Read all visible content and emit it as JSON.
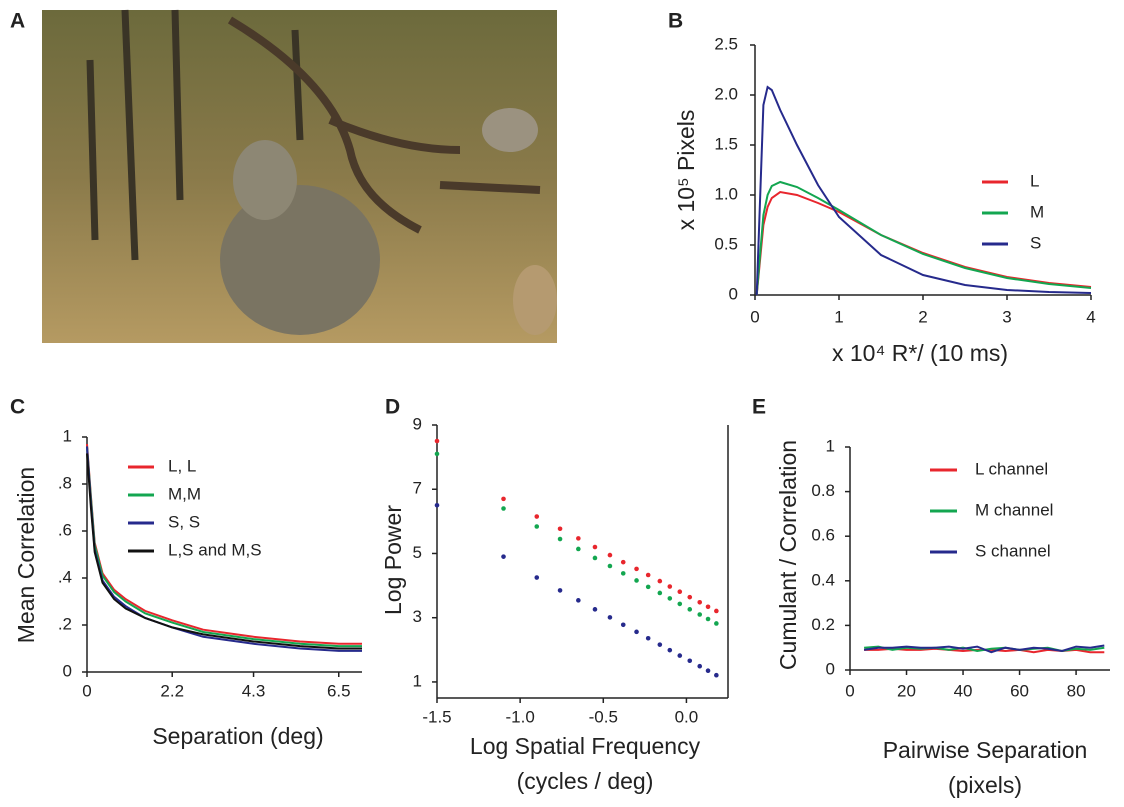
{
  "chart_data": [
    {
      "type": "image",
      "panel": "A"
    },
    {
      "type": "line",
      "panel": "B",
      "ylabel": "x 10⁵ Pixels",
      "xlabel": "x 10⁴ R*/ (10 ms)",
      "x": [
        0.02,
        0.1,
        0.15,
        0.2,
        0.3,
        0.5,
        0.75,
        1,
        1.5,
        2,
        2.5,
        3,
        3.5,
        4
      ],
      "series": [
        {
          "name": "L",
          "color": "#e8262d",
          "values": [
            0,
            0.7,
            0.88,
            0.97,
            1.03,
            1.0,
            0.92,
            0.83,
            0.6,
            0.42,
            0.28,
            0.18,
            0.12,
            0.08
          ]
        },
        {
          "name": "M",
          "color": "#13a650",
          "values": [
            0,
            0.8,
            1.0,
            1.09,
            1.13,
            1.08,
            0.97,
            0.85,
            0.6,
            0.41,
            0.27,
            0.17,
            0.11,
            0.07
          ]
        },
        {
          "name": "S",
          "color": "#262a8c",
          "values": [
            0,
            1.9,
            2.08,
            2.05,
            1.85,
            1.5,
            1.1,
            0.78,
            0.4,
            0.2,
            0.1,
            0.05,
            0.03,
            0.02
          ]
        }
      ],
      "xlim": [
        0,
        4
      ],
      "xticks": [
        0,
        1,
        2,
        3,
        4
      ],
      "ylim": [
        0,
        2.5
      ],
      "yticks": [
        0,
        0.5,
        {
          "value": 1,
          "label": "1.0"
        },
        1.5,
        {
          "value": 2,
          "label": "2.0"
        },
        2.5
      ]
    },
    {
      "type": "line",
      "panel": "C",
      "ylabel": "Mean Correlation",
      "xlabel": "Separation (deg)",
      "x": [
        0,
        0.1,
        0.2,
        0.4,
        0.7,
        1,
        1.5,
        2.2,
        3,
        4.3,
        5.5,
        6.5,
        7.1
      ],
      "series": [
        {
          "name": "L, L",
          "color": "#e8262d",
          "values": [
            0.97,
            0.75,
            0.55,
            0.42,
            0.35,
            0.31,
            0.26,
            0.22,
            0.18,
            0.15,
            0.13,
            0.12,
            0.12
          ]
        },
        {
          "name": "M,M",
          "color": "#13a650",
          "values": [
            0.96,
            0.74,
            0.54,
            0.41,
            0.34,
            0.3,
            0.25,
            0.21,
            0.17,
            0.14,
            0.12,
            0.11,
            0.11
          ]
        },
        {
          "name": "S, S",
          "color": "#262a8c",
          "values": [
            0.96,
            0.72,
            0.52,
            0.39,
            0.32,
            0.28,
            0.23,
            0.19,
            0.15,
            0.12,
            0.1,
            0.09,
            0.09
          ]
        },
        {
          "name": "L,S and M,S",
          "color": "#111111",
          "values": [
            0.93,
            0.7,
            0.51,
            0.38,
            0.31,
            0.27,
            0.23,
            0.19,
            0.16,
            0.13,
            0.11,
            0.1,
            0.1
          ]
        }
      ],
      "xlim": [
        0,
        7.1
      ],
      "xticks": [
        0,
        2.2,
        4.3,
        6.5
      ],
      "ylim": [
        0,
        1
      ],
      "yticks": [
        0,
        {
          "value": 0.2,
          "label": ".2"
        },
        {
          "value": 0.4,
          "label": ".4"
        },
        {
          "value": 0.6,
          "label": ".6"
        },
        {
          "value": 0.8,
          "label": ".8"
        },
        1
      ]
    },
    {
      "type": "scatter",
      "panel": "D",
      "ylabel": "Log Power",
      "xlabel": [
        "Log Spatial Frequency",
        "(cycles / deg)"
      ],
      "x": [
        -1.5,
        -1.1,
        -0.9,
        -0.76,
        -0.65,
        -0.55,
        -0.46,
        -0.38,
        -0.3,
        -0.23,
        -0.16,
        -0.1,
        -0.04,
        0.02,
        0.08,
        0.13,
        0.18
      ],
      "series": [
        {
          "color": "#e8262d",
          "values": [
            8.5,
            6.7,
            6.15,
            5.77,
            5.47,
            5.2,
            4.95,
            4.73,
            4.52,
            4.33,
            4.14,
            3.97,
            3.81,
            3.64,
            3.48,
            3.34,
            3.21
          ]
        },
        {
          "color": "#13a650",
          "values": [
            8.1,
            6.4,
            5.84,
            5.45,
            5.14,
            4.86,
            4.61,
            4.38,
            4.16,
            3.96,
            3.77,
            3.6,
            3.43,
            3.26,
            3.1,
            2.96,
            2.82
          ]
        },
        {
          "color": "#262a8c",
          "values": [
            6.5,
            4.9,
            4.25,
            3.85,
            3.54,
            3.26,
            3.01,
            2.78,
            2.56,
            2.36,
            2.16,
            1.99,
            1.82,
            1.66,
            1.49,
            1.35,
            1.21
          ]
        }
      ],
      "xlim": [
        -1.5,
        0.25
      ],
      "xticks": [
        -1.5,
        {
          "value": -1,
          "label": "-1.0"
        },
        -0.5,
        {
          "value": 0,
          "label": "0.0"
        }
      ],
      "ylim": [
        0.5,
        9
      ],
      "yticks": [
        1,
        3,
        5,
        7,
        9
      ]
    },
    {
      "type": "line",
      "panel": "E",
      "ylabel": "Cumulant / Correlation",
      "xlabel": [
        "Pairwise Separation",
        "(pixels)"
      ],
      "x": [
        5,
        10,
        15,
        20,
        25,
        30,
        35,
        40,
        45,
        50,
        55,
        60,
        65,
        70,
        75,
        80,
        85,
        90
      ],
      "series": [
        {
          "name": "L channel",
          "color": "#e8262d",
          "values": [
            0.09,
            0.09,
            0.095,
            0.09,
            0.09,
            0.095,
            0.09,
            0.085,
            0.09,
            0.09,
            0.085,
            0.09,
            0.08,
            0.09,
            0.085,
            0.09,
            0.08,
            0.08
          ]
        },
        {
          "name": "M channel",
          "color": "#13a650",
          "values": [
            0.1,
            0.105,
            0.09,
            0.1,
            0.095,
            0.1,
            0.09,
            0.1,
            0.085,
            0.095,
            0.1,
            0.09,
            0.095,
            0.1,
            0.085,
            0.095,
            0.09,
            0.1
          ]
        },
        {
          "name": "S channel",
          "color": "#262a8c",
          "values": [
            0.09,
            0.1,
            0.1,
            0.105,
            0.1,
            0.1,
            0.105,
            0.095,
            0.105,
            0.08,
            0.1,
            0.09,
            0.1,
            0.095,
            0.085,
            0.105,
            0.1,
            0.11
          ]
        }
      ],
      "xlim": [
        0,
        92
      ],
      "xticks": [
        0,
        20,
        40,
        60,
        80
      ],
      "ylim": [
        0,
        1
      ],
      "yticks": [
        0,
        0.2,
        0.4,
        0.6,
        0.8,
        1
      ]
    }
  ]
}
